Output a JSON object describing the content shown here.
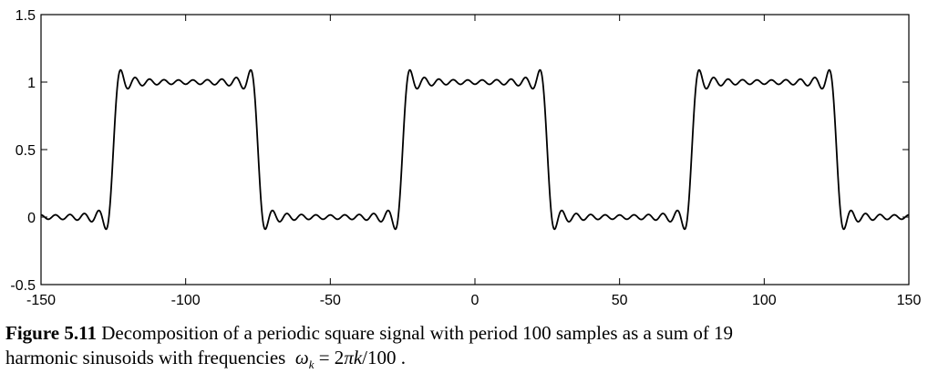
{
  "chart_data": {
    "type": "line",
    "title": "",
    "xlabel": "",
    "ylabel": "",
    "xlim": [
      -150,
      150
    ],
    "ylim": [
      -0.5,
      1.5
    ],
    "xticks": [
      -150,
      -100,
      -50,
      0,
      50,
      100,
      150
    ],
    "xtick_labels": [
      "-150",
      "-100",
      "-50",
      "0",
      "50",
      "100",
      "150"
    ],
    "yticks": [
      -0.5,
      0,
      0.5,
      1,
      1.5
    ],
    "ytick_labels": [
      "-0.5",
      "0",
      "0.5",
      "1",
      "1.5"
    ],
    "grid": false,
    "legend": "none",
    "line_color": "#000000",
    "series": [
      {
        "function": "partial Fourier sum of a periodic square signal",
        "period": 100,
        "high_level": 1,
        "low_level": 0,
        "high_interval_in_period": [
          -25,
          25
        ],
        "harmonics": 19,
        "harmonic_frequency": "omega_k = 2*pi*k/100",
        "x_range": [
          -150,
          150
        ]
      }
    ]
  },
  "caption": {
    "label": "Figure 5.11",
    "text_line1": "Decomposition of a periodic square signal with period 100 samples as a sum of 19",
    "text_line2": "harmonic sinusoids with frequencies",
    "formula_omega": "ω",
    "formula_sub": "k",
    "formula_rest": "= 2",
    "formula_pi": "π",
    "formula_k": "k",
    "formula_tail": "/100 ."
  }
}
